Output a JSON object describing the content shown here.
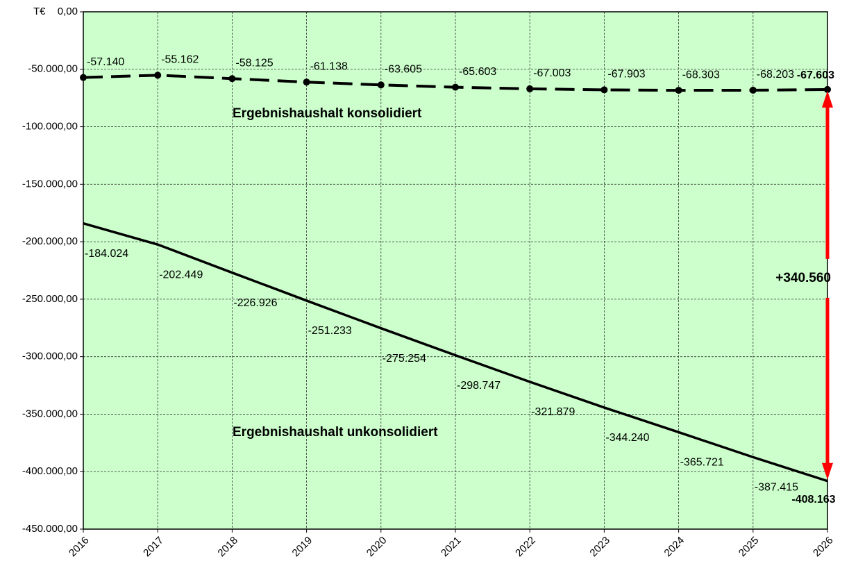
{
  "chart_data": {
    "type": "line",
    "y_unit": "T€",
    "categories": [
      "2016",
      "2017",
      "2018",
      "2019",
      "2020",
      "2021",
      "2022",
      "2023",
      "2024",
      "2025",
      "2026"
    ],
    "series": [
      {
        "name": "Ergebnishaushalt konsolidiert",
        "color": "#000000",
        "line_style": "dashed",
        "marker": "circle",
        "values": [
          -57140,
          -55162,
          -58125,
          -61138,
          -63605,
          -65603,
          -67003,
          -67903,
          -68303,
          -68203,
          -67603
        ],
        "value_labels": [
          "-57.140",
          "-55.162",
          "-58.125",
          "-61.138",
          "-63.605",
          "-65.603",
          "-67.003",
          "-67.903",
          "-68.303",
          "-68.203",
          "-67.603"
        ]
      },
      {
        "name": "Ergebnishaushalt unkonsolidiert",
        "color": "#000000",
        "line_style": "solid",
        "values": [
          -184024,
          -202449,
          -226926,
          -251233,
          -275254,
          -298747,
          -321879,
          -344240,
          -365721,
          -387415,
          -408163
        ],
        "value_labels": [
          "-184.024",
          "-202.449",
          "-226.926",
          "-251.233",
          "-275.254",
          "-298.747",
          "-321.879",
          "-344.240",
          "-365.721",
          "-387.415",
          "-408.163"
        ]
      }
    ],
    "annotations": [
      "+340.560"
    ],
    "ylim": [
      -450000,
      0
    ],
    "yticks": [
      {
        "value": 0,
        "label": "0,00"
      },
      {
        "value": -50000,
        "label": "-50.000,00"
      },
      {
        "value": -100000,
        "label": "-100.000,00"
      },
      {
        "value": -150000,
        "label": "-150.000,00"
      },
      {
        "value": -200000,
        "label": "-200.000,00"
      },
      {
        "value": -250000,
        "label": "-250.000,00"
      },
      {
        "value": -300000,
        "label": "-300.000,00"
      },
      {
        "value": -350000,
        "label": "-350.000,00"
      },
      {
        "value": -400000,
        "label": "-400.000,00"
      },
      {
        "value": -450000,
        "label": "-450.000,00"
      }
    ],
    "grid": true,
    "plot_background": "#ccffcc"
  }
}
